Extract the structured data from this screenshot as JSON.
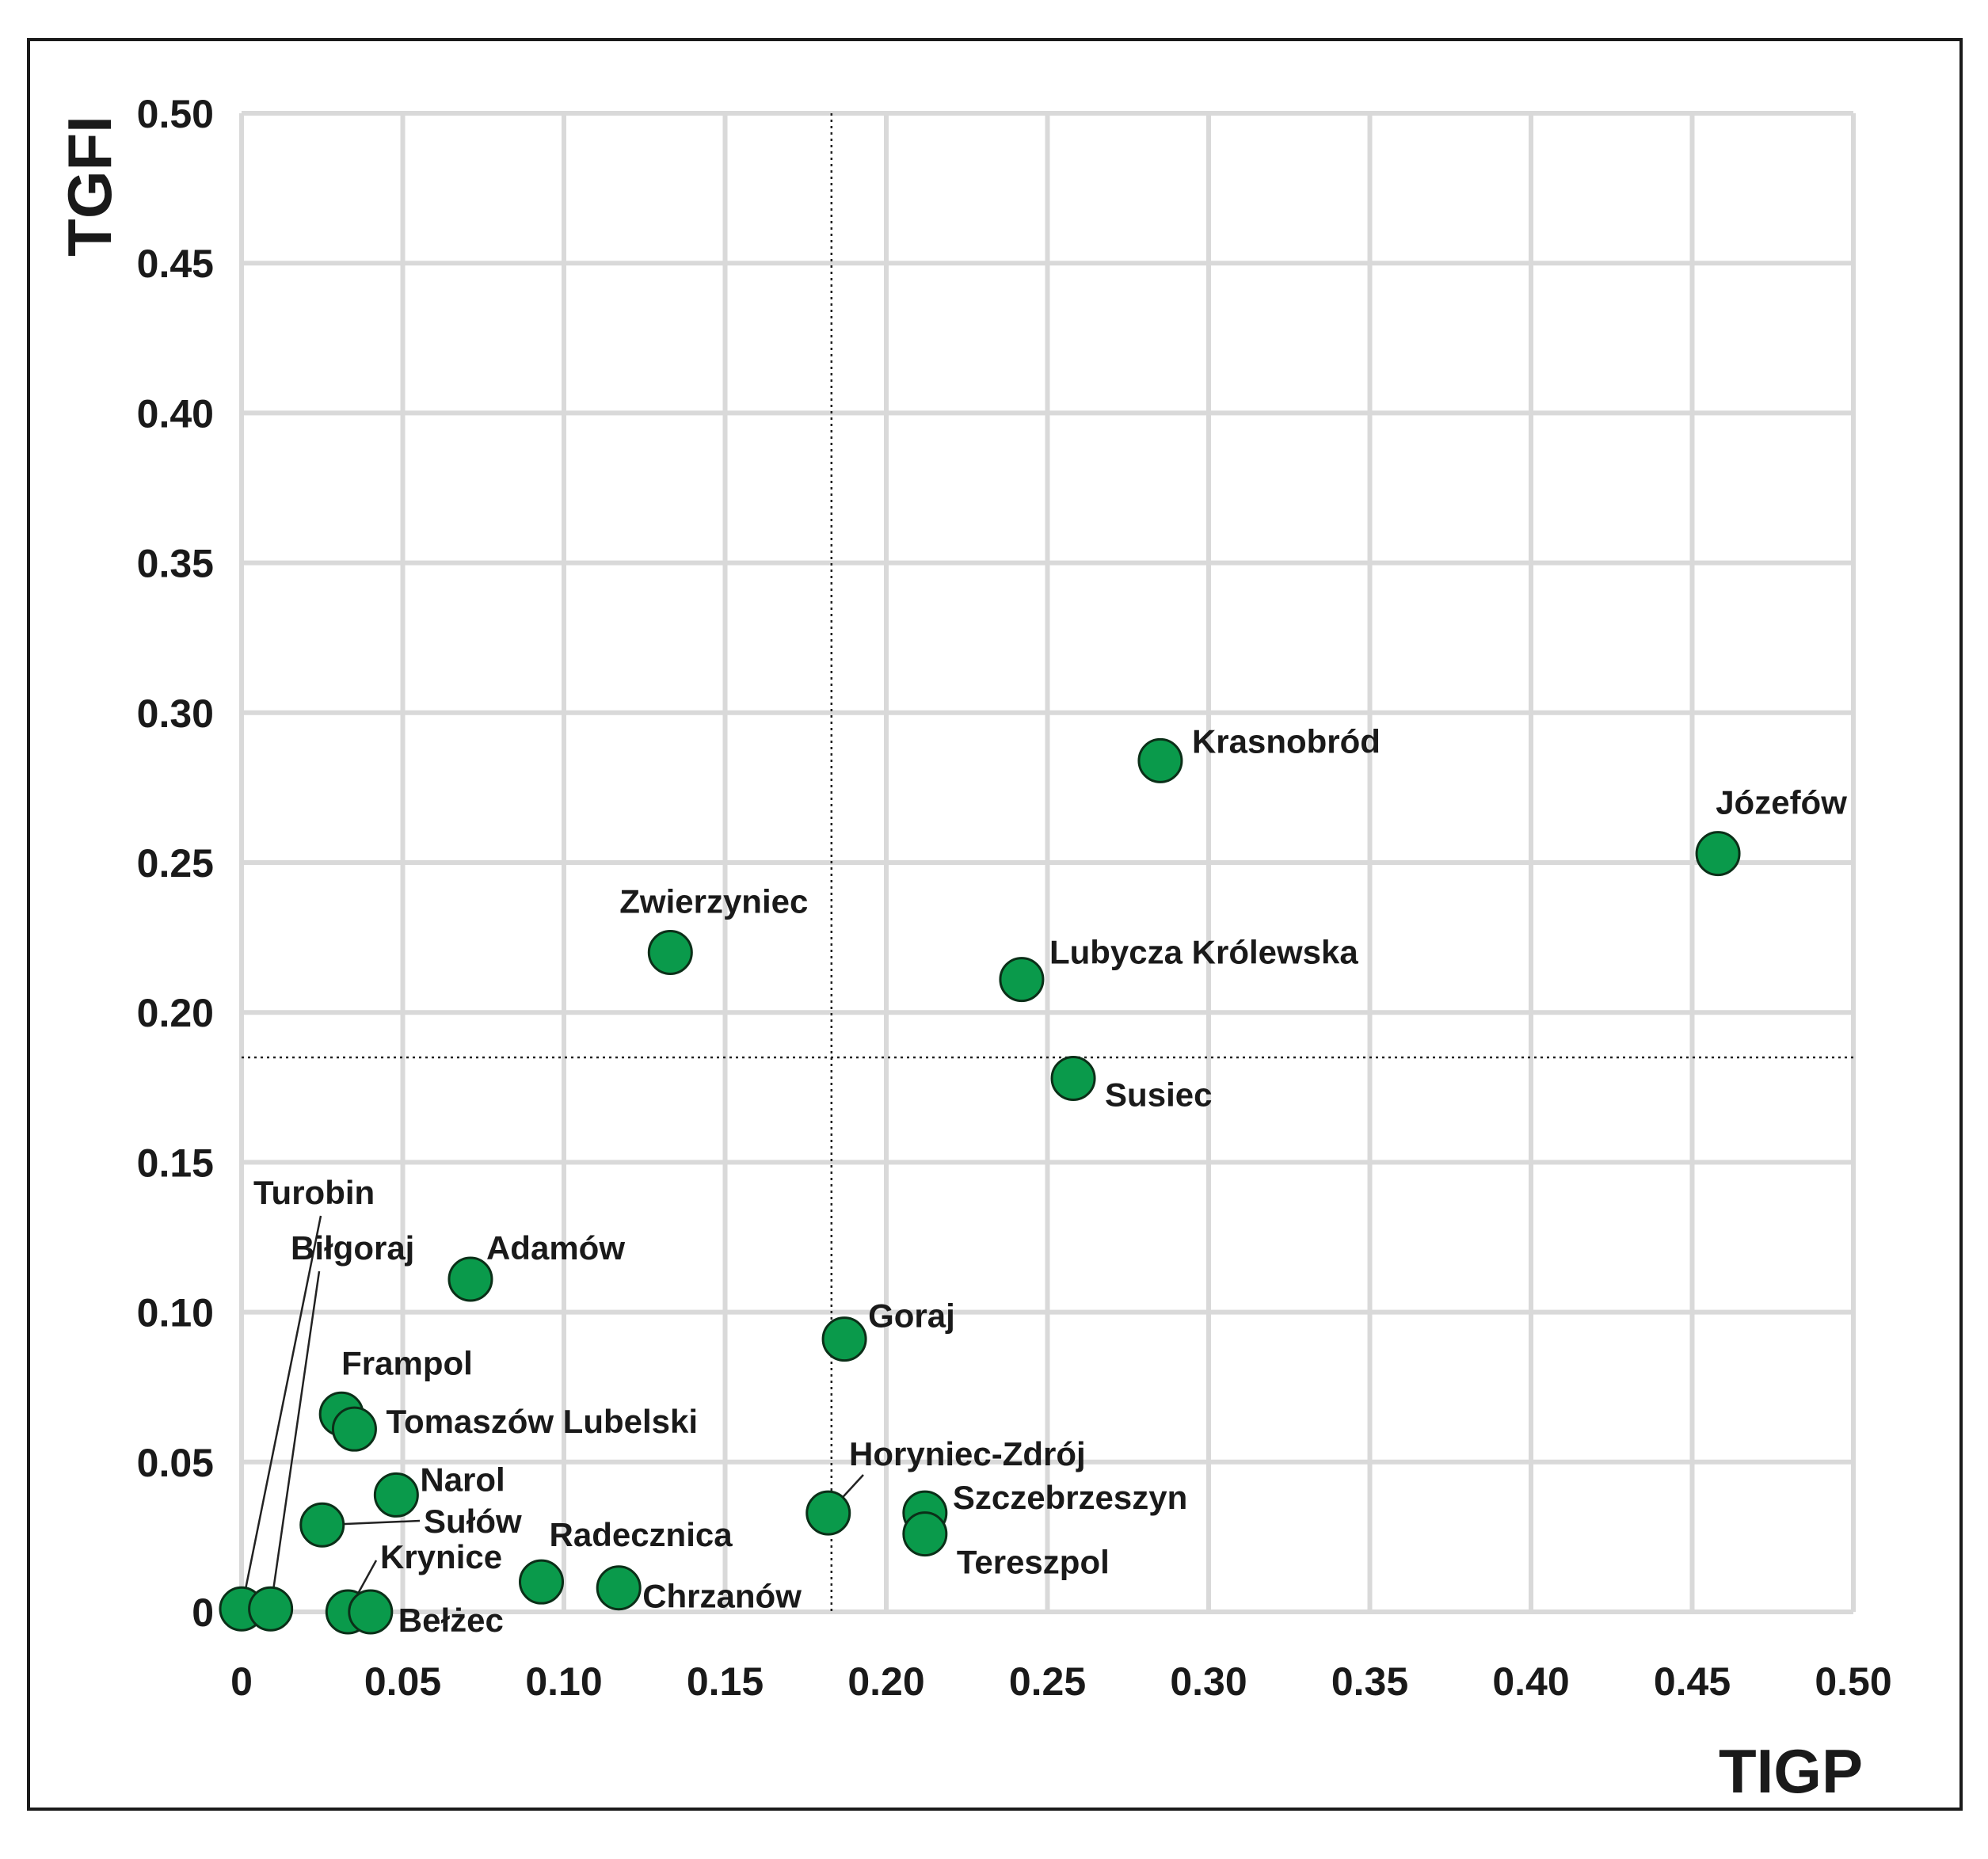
{
  "chart_data": {
    "type": "scatter",
    "xlabel": "TIGP",
    "ylabel": "TGFI",
    "xlim": [
      0,
      0.5
    ],
    "ylim": [
      0,
      0.5
    ],
    "grid": true,
    "x_ticks": [
      "0",
      "0.05",
      "0.10",
      "0.15",
      "0.20",
      "0.25",
      "0.30",
      "0.35",
      "0.40",
      "0.45",
      "0.50"
    ],
    "y_ticks": [
      "0",
      "0.05",
      "0.10",
      "0.15",
      "0.20",
      "0.25",
      "0.30",
      "0.35",
      "0.40",
      "0.45",
      "0.50"
    ],
    "reference_lines": {
      "x": 0.183,
      "y": 0.185
    },
    "marker_color": "#0a9a4b",
    "points": [
      {
        "name": "Turobin",
        "x": 0.0,
        "y": 0.001
      },
      {
        "name": "Biłgoraj",
        "x": 0.009,
        "y": 0.001
      },
      {
        "name": "Frampol",
        "x": 0.031,
        "y": 0.066
      },
      {
        "name": "Tomaszów Lubelski",
        "x": 0.035,
        "y": 0.061
      },
      {
        "name": "Narol",
        "x": 0.048,
        "y": 0.039
      },
      {
        "name": "Sułów",
        "x": 0.025,
        "y": 0.029
      },
      {
        "name": "Krynice",
        "x": 0.033,
        "y": 0.0
      },
      {
        "name": "Bełżec",
        "x": 0.04,
        "y": 0.0
      },
      {
        "name": "Adamów",
        "x": 0.071,
        "y": 0.111
      },
      {
        "name": "Radecznica",
        "x": 0.093,
        "y": 0.01
      },
      {
        "name": "Chrzanów",
        "x": 0.117,
        "y": 0.008
      },
      {
        "name": "Zwierzyniec",
        "x": 0.133,
        "y": 0.22
      },
      {
        "name": "Horyniec-Zdrój",
        "x": 0.182,
        "y": 0.033
      },
      {
        "name": "Goraj",
        "x": 0.187,
        "y": 0.091
      },
      {
        "name": "Szczebrzeszyn",
        "x": 0.212,
        "y": 0.033
      },
      {
        "name": "Tereszpol",
        "x": 0.212,
        "y": 0.026
      },
      {
        "name": "Lubycza Królewska",
        "x": 0.242,
        "y": 0.211
      },
      {
        "name": "Susiec",
        "x": 0.258,
        "y": 0.178
      },
      {
        "name": "Krasnobród",
        "x": 0.285,
        "y": 0.284
      },
      {
        "name": "Józefów",
        "x": 0.458,
        "y": 0.253
      }
    ]
  }
}
